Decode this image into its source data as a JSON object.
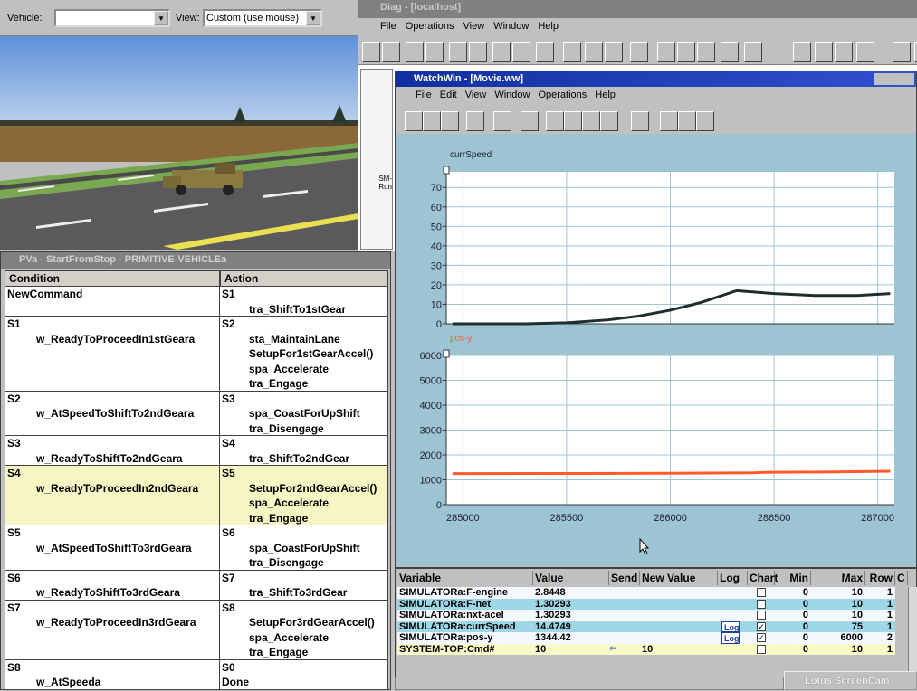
{
  "vehicle_bar": {
    "vehicle_label": "Vehicle:",
    "view_label": "View:",
    "view_value": "Custom (use mouse)"
  },
  "diag": {
    "title": "Diag - [localhost]",
    "menu": [
      "File",
      "Operations",
      "View",
      "Window",
      "Help"
    ],
    "side_text": [
      "SM-",
      "Run"
    ]
  },
  "watchwin": {
    "title": "WatchWin - [Movie.ww]",
    "menu": [
      "File",
      "Edit",
      "View",
      "Window",
      "Operations",
      "Help"
    ]
  },
  "chart_data": [
    {
      "type": "line",
      "title": "currSpeed",
      "color": "#1e2e2e",
      "x": [
        284950,
        285300,
        285500,
        285700,
        285850,
        286000,
        286150,
        286320,
        286500,
        286700,
        286900,
        287060
      ],
      "values": [
        0,
        0,
        0.5,
        2,
        4,
        7,
        11,
        17,
        15.5,
        14.5,
        14.5,
        15.5
      ],
      "xlim": [
        284920,
        287080
      ],
      "ylim": [
        0,
        78
      ],
      "yticks": [
        0,
        10,
        20,
        30,
        40,
        50,
        60,
        70
      ],
      "grid": true
    },
    {
      "type": "line",
      "title": "pos-y",
      "color": "#ff5a2a",
      "x": [
        284950,
        285500,
        286000,
        286400,
        286450,
        286800,
        287060
      ],
      "values": [
        1250,
        1255,
        1265,
        1280,
        1300,
        1320,
        1345
      ],
      "xlim": [
        284920,
        287080
      ],
      "ylim": [
        0,
        6000
      ],
      "yticks": [
        0,
        1000,
        2000,
        3000,
        4000,
        5000,
        6000
      ],
      "xticks": [
        285000,
        285500,
        286000,
        286500,
        287000
      ],
      "grid": true
    }
  ],
  "pva": {
    "title": "PVa - StartFromStop - PRIMITIVE-VEHICLEa",
    "headers": [
      "Condition",
      "Action"
    ],
    "rows": [
      {
        "c_state": "NewCommand",
        "a_state": "S1",
        "a_lines": [
          "tra_ShiftTo1stGear"
        ]
      },
      {
        "c_state": "S1",
        "c_text": "w_ReadyToProceedIn1stGeara",
        "a_state": "S2",
        "a_lines": [
          "sta_MaintainLane",
          "SetupFor1stGearAccel()",
          "spa_Accelerate",
          "tra_Engage"
        ]
      },
      {
        "c_state": "S2",
        "c_text": "w_AtSpeedToShiftTo2ndGeara",
        "a_state": "S3",
        "a_lines": [
          "spa_CoastForUpShift",
          "tra_Disengage"
        ]
      },
      {
        "c_state": "S3",
        "c_text": "w_ReadyToShiftTo2ndGeara",
        "a_state": "S4",
        "a_lines": [
          "tra_ShiftTo2ndGear"
        ]
      },
      {
        "c_state": "S4",
        "c_text": "w_ReadyToProceedIn2ndGeara",
        "a_state": "S5",
        "a_lines": [
          "SetupFor2ndGearAccel()",
          "spa_Accelerate",
          "tra_Engage"
        ],
        "highlight": true
      },
      {
        "c_state": "S5",
        "c_text": "w_AtSpeedToShiftTo3rdGeara",
        "a_state": "S6",
        "a_lines": [
          "spa_CoastForUpShift",
          "tra_Disengage"
        ]
      },
      {
        "c_state": "S6",
        "c_text": "w_ReadyToShiftTo3rdGeara",
        "a_state": "S7",
        "a_lines": [
          "tra_ShiftTo3rdGear"
        ]
      },
      {
        "c_state": "S7",
        "c_text": "w_ReadyToProceedIn3rdGeara",
        "a_state": "S8",
        "a_lines": [
          "SetupFor3rdGearAccel()",
          "spa_Accelerate",
          "tra_Engage"
        ]
      },
      {
        "c_state": "S8",
        "c_text": "w_AtSpeeda",
        "a_state": "S0",
        "a_lines": [
          "Done"
        ]
      }
    ]
  },
  "variables": {
    "headers": [
      "Variable",
      "Value",
      "Send",
      "New Value",
      "Log",
      "Chart",
      "Min",
      "Max",
      "Row",
      "C"
    ],
    "rows": [
      {
        "name": "SIMULATORa:F-engine",
        "value": "2.8448",
        "chart": false,
        "min": 0,
        "max": 10,
        "row": 1,
        "bg": "#f4f8fc"
      },
      {
        "name": "SIMULATORa:F-net",
        "value": "1.30293",
        "chart": false,
        "min": 0,
        "max": 10,
        "row": 1,
        "bg": "#9ed8e8"
      },
      {
        "name": "SIMULATORa:nxt-acel",
        "value": "1.30293",
        "chart": false,
        "min": 0,
        "max": 10,
        "row": 1,
        "bg": "#f4f8fc"
      },
      {
        "name": "SIMULATORa:currSpeed",
        "value": "14.4749",
        "log": "Log",
        "chart": true,
        "min": 0,
        "max": 75,
        "row": 1,
        "bg": "#9ed8e8"
      },
      {
        "name": "SIMULATORa:pos-y",
        "value": "1344.42",
        "log": "Log",
        "chart": true,
        "min": 0,
        "max": 6000,
        "row": 2,
        "bg": "#f4f8fc"
      },
      {
        "name": "SYSTEM-TOP:Cmd#",
        "value": "10",
        "new_value": "10",
        "chart": false,
        "min": 0,
        "max": 10,
        "row": 1,
        "bg": "#fafac8"
      }
    ]
  },
  "taskbar": {
    "item": "Lotus ScreenCam"
  }
}
